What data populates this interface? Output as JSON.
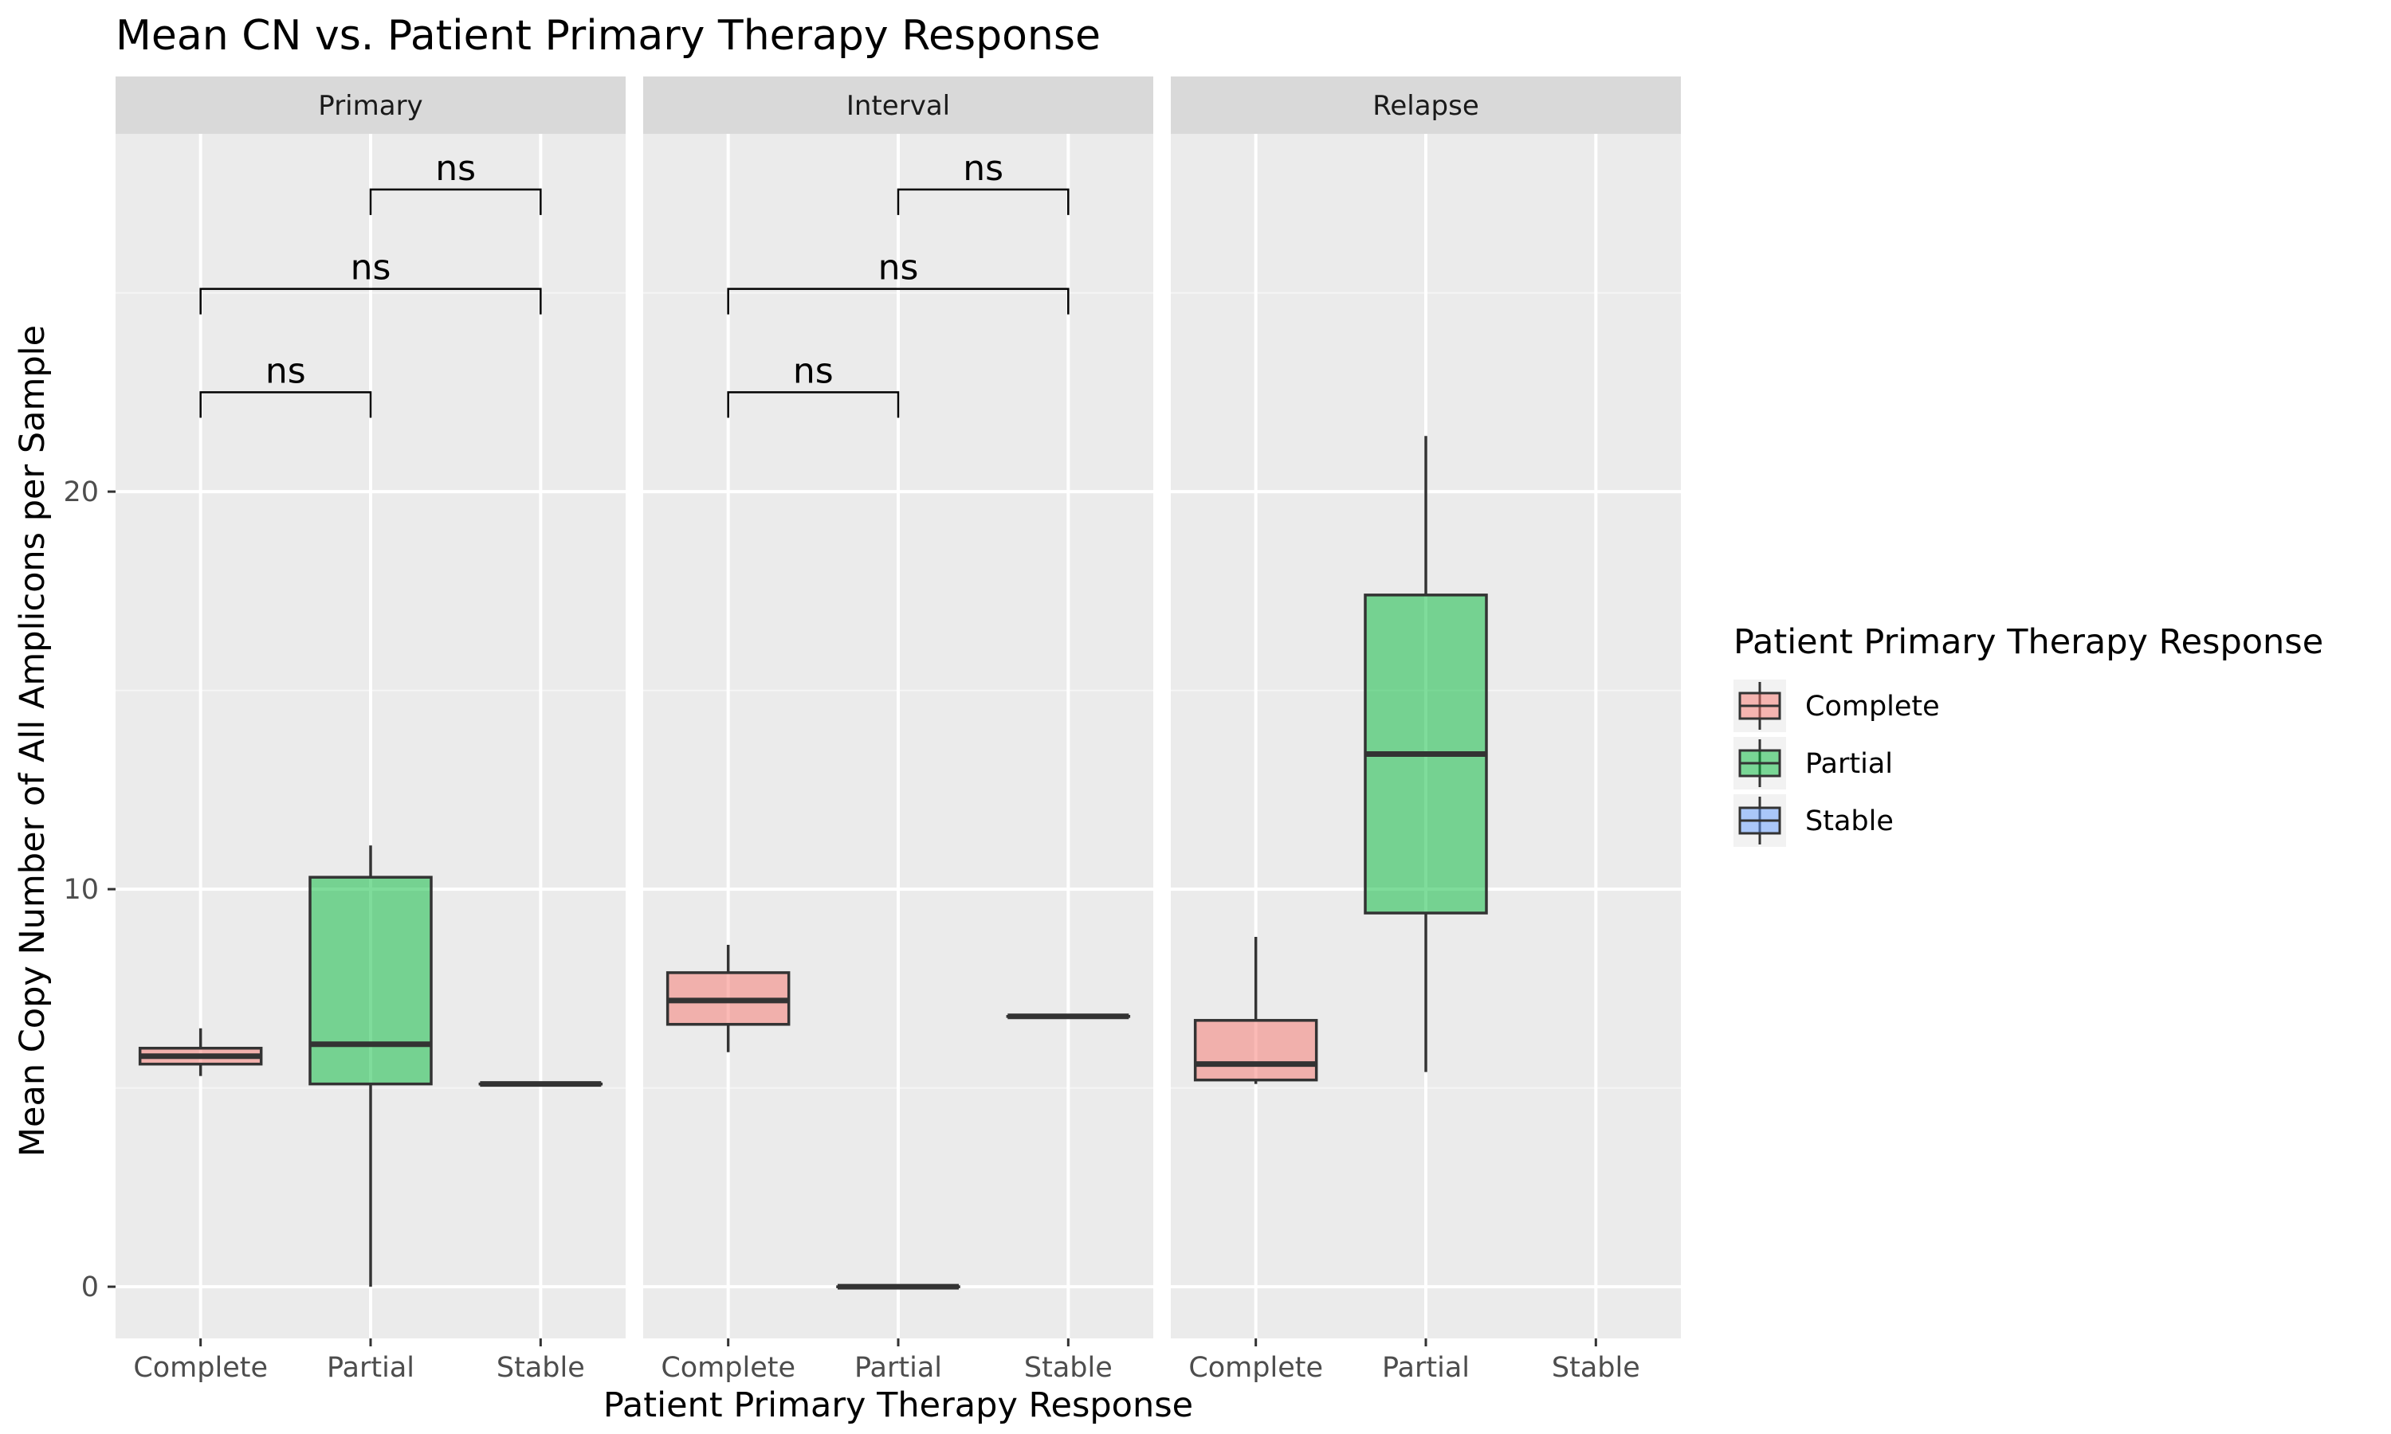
{
  "chart_data": {
    "type": "boxplot",
    "title": "Mean CN vs. Patient Primary Therapy Response",
    "xlabel": "Patient Primary Therapy Response",
    "ylabel": "Mean Copy Number of All Amplicons per Sample",
    "categories": [
      "Complete",
      "Partial",
      "Stable"
    ],
    "ylim": [
      -1.3,
      29
    ],
    "y_ticks": [
      0,
      10,
      20
    ],
    "y_tick_labels": [
      "0",
      "10",
      "20"
    ],
    "colors": {
      "Complete": "#F8766D",
      "Partial": "#00BA38",
      "Stable": "#619CFF"
    },
    "grid": true,
    "legend": {
      "title": "Patient Primary Therapy Response",
      "entries": [
        "Complete",
        "Partial",
        "Stable"
      ],
      "position": "right"
    },
    "panels": [
      {
        "name": "Primary",
        "boxes": [
          {
            "category": "Complete",
            "min": 5.3,
            "q1": 5.6,
            "median": 5.8,
            "q3": 6.0,
            "max": 6.5
          },
          {
            "category": "Partial",
            "min": 0.0,
            "q1": 5.1,
            "median": 6.1,
            "q3": 10.3,
            "max": 11.1
          },
          {
            "category": "Stable",
            "min": 5.1,
            "q1": 5.1,
            "median": 5.1,
            "q3": 5.1,
            "max": 5.1
          }
        ],
        "comparisons": [
          {
            "from": "Complete",
            "to": "Partial",
            "label": "ns",
            "y": 22.5
          },
          {
            "from": "Complete",
            "to": "Stable",
            "label": "ns",
            "y": 25.1
          },
          {
            "from": "Partial",
            "to": "Stable",
            "label": "ns",
            "y": 27.6
          }
        ]
      },
      {
        "name": "Interval",
        "boxes": [
          {
            "category": "Complete",
            "min": 5.9,
            "q1": 6.6,
            "median": 7.2,
            "q3": 7.9,
            "max": 8.6
          },
          {
            "category": "Partial",
            "min": 0.0,
            "q1": 0.0,
            "median": 0.0,
            "q3": 0.0,
            "max": 0.0
          },
          {
            "category": "Stable",
            "min": 6.8,
            "q1": 6.8,
            "median": 6.8,
            "q3": 6.8,
            "max": 6.8
          }
        ],
        "comparisons": [
          {
            "from": "Complete",
            "to": "Partial",
            "label": "ns",
            "y": 22.5
          },
          {
            "from": "Complete",
            "to": "Stable",
            "label": "ns",
            "y": 25.1
          },
          {
            "from": "Partial",
            "to": "Stable",
            "label": "ns",
            "y": 27.6
          }
        ]
      },
      {
        "name": "Relapse",
        "boxes": [
          {
            "category": "Complete",
            "min": 5.1,
            "q1": 5.2,
            "median": 5.6,
            "q3": 6.7,
            "max": 8.8
          },
          {
            "category": "Partial",
            "min": 5.4,
            "q1": 9.4,
            "median": 13.4,
            "q3": 17.4,
            "max": 21.4
          }
        ],
        "comparisons": []
      }
    ]
  }
}
